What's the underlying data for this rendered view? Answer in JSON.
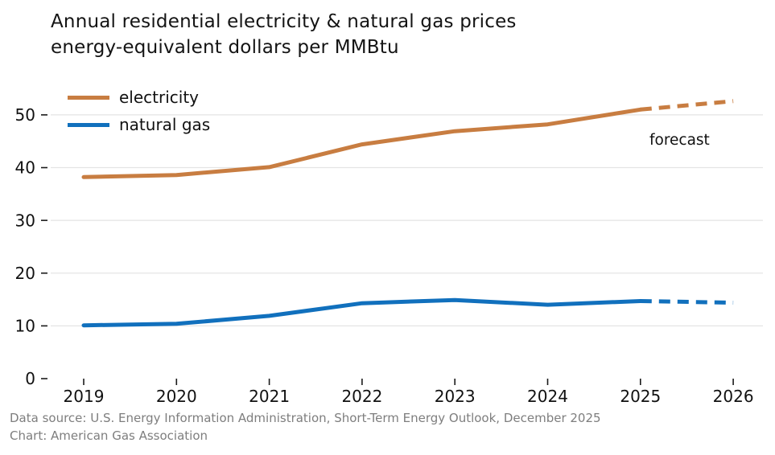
{
  "title": {
    "line1": "Annual residential electricity & natural gas prices",
    "line2": "energy-equivalent dollars per MMBtu"
  },
  "footer": {
    "source": "Data source: U.S. Energy Information Administration, Short-Term Energy Outlook, December 2025",
    "credit": "Chart: American Gas Association"
  },
  "colors": {
    "electricity": "#c87d41",
    "natural_gas": "#1170bd",
    "grid": "#e4e4e4",
    "tick": "#1a1a1a",
    "axis_text": "#111111",
    "footer_text": "#7e7e7e"
  },
  "chart_data": {
    "type": "line",
    "title": "Annual residential electricity & natural gas prices",
    "subtitle": "energy-equivalent dollars per MMBtu",
    "x": [
      2019,
      2020,
      2021,
      2022,
      2023,
      2024,
      2025,
      2026
    ],
    "series": [
      {
        "name": "electricity",
        "color": "#c87d41",
        "values": [
          38.2,
          38.6,
          40.1,
          44.4,
          46.9,
          48.2,
          51.0,
          52.6
        ],
        "forecast_from": 2025
      },
      {
        "name": "natural gas",
        "color": "#1170bd",
        "values": [
          10.1,
          10.4,
          11.9,
          14.3,
          14.9,
          14.0,
          14.7,
          14.4
        ],
        "forecast_from": 2025
      }
    ],
    "ylim": [
      0,
      55
    ],
    "yticks": [
      0,
      10,
      20,
      30,
      40,
      50
    ],
    "grid": "horizontal-only",
    "legend_position": "top-left",
    "annotation": {
      "text": "forecast"
    }
  }
}
